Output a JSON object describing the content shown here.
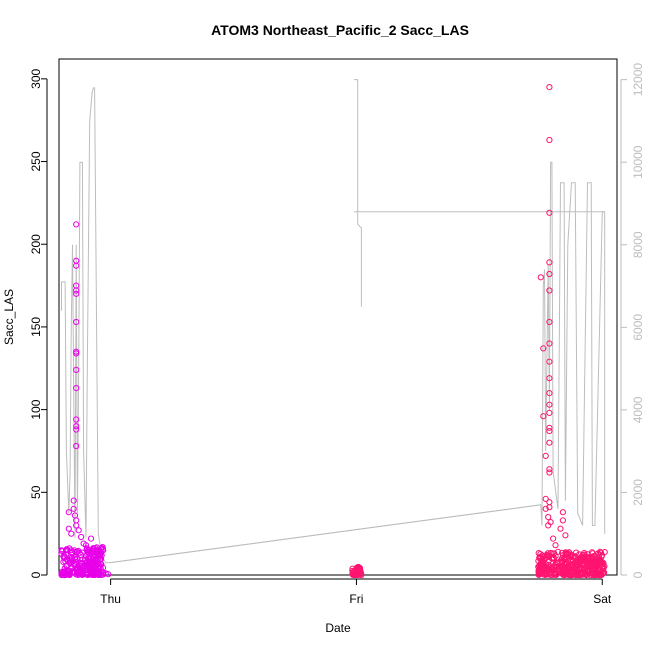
{
  "chart_data": {
    "type": "scatter",
    "title": "ATOM3 Northeast_Pacific_2 Sacc_LAS",
    "xlabel": "Date",
    "ylabel": "Sacc_LAS",
    "x_range_days": [
      -0.21,
      2.06
    ],
    "ylim": [
      0,
      312
    ],
    "y_ticks": [
      0,
      50,
      100,
      150,
      200,
      250,
      300
    ],
    "y_right_range": [
      0,
      12500
    ],
    "y_right_ticks": [
      0,
      2000,
      4000,
      6000,
      8000,
      10000,
      12000
    ],
    "x_ticks": [
      {
        "label": "Thu",
        "day": 0
      },
      {
        "label": "Fri",
        "day": 1
      },
      {
        "label": "Sat",
        "day": 2
      }
    ],
    "grid": false,
    "legend": "none",
    "colors": {
      "points_early": "#e800e8",
      "points_late": "#ff1470",
      "secondary_line": "#bdbdbd",
      "frame": "#000000"
    },
    "scatter_series": {
      "name": "",
      "points": [
        [
          -0.17,
          38
        ],
        [
          -0.17,
          28
        ],
        [
          -0.16,
          25
        ],
        [
          -0.15,
          45
        ],
        [
          -0.15,
          40
        ],
        [
          -0.145,
          36
        ],
        [
          -0.14,
          212
        ],
        [
          -0.14,
          190
        ],
        [
          -0.14,
          187
        ],
        [
          -0.14,
          175
        ],
        [
          -0.14,
          172
        ],
        [
          -0.14,
          170
        ],
        [
          -0.14,
          153
        ],
        [
          -0.14,
          135
        ],
        [
          -0.14,
          134
        ],
        [
          -0.14,
          124
        ],
        [
          -0.14,
          113
        ],
        [
          -0.14,
          94
        ],
        [
          -0.14,
          90
        ],
        [
          -0.14,
          88
        ],
        [
          -0.14,
          78
        ],
        [
          -0.14,
          33
        ],
        [
          -0.14,
          30
        ],
        [
          -0.13,
          27
        ],
        [
          -0.12,
          23
        ],
        [
          -0.11,
          19
        ],
        [
          -0.1,
          18
        ],
        [
          -0.09,
          14
        ],
        [
          -0.08,
          22
        ],
        [
          -0.07,
          14
        ],
        [
          -0.06,
          15
        ],
        [
          -0.05,
          13
        ],
        [
          -0.04,
          16
        ],
        [
          -0.03,
          15
        ],
        [
          -0.02,
          1
        ],
        [
          -0.01,
          0.5
        ],
        [
          0.99,
          2
        ],
        [
          1.0,
          3
        ],
        [
          1.01,
          2
        ],
        [
          1.75,
          180
        ],
        [
          1.76,
          137
        ],
        [
          1.76,
          96
        ],
        [
          1.77,
          72
        ],
        [
          1.77,
          46
        ],
        [
          1.77,
          40
        ],
        [
          1.78,
          35
        ],
        [
          1.78,
          30
        ],
        [
          1.785,
          295
        ],
        [
          1.785,
          263
        ],
        [
          1.785,
          219
        ],
        [
          1.785,
          189
        ],
        [
          1.785,
          182
        ],
        [
          1.785,
          172
        ],
        [
          1.785,
          153
        ],
        [
          1.785,
          140
        ],
        [
          1.785,
          129
        ],
        [
          1.785,
          119
        ],
        [
          1.785,
          110
        ],
        [
          1.785,
          103
        ],
        [
          1.785,
          98
        ],
        [
          1.785,
          89
        ],
        [
          1.785,
          87
        ],
        [
          1.785,
          80
        ],
        [
          1.785,
          64
        ],
        [
          1.785,
          62
        ],
        [
          1.785,
          44
        ],
        [
          1.785,
          41
        ],
        [
          1.79,
          32
        ],
        [
          1.8,
          22
        ],
        [
          1.81,
          18
        ],
        [
          1.82,
          14
        ],
        [
          1.83,
          28
        ],
        [
          1.84,
          33
        ],
        [
          1.84,
          38
        ],
        [
          1.85,
          24
        ],
        [
          1.86,
          13
        ],
        [
          1.88,
          11
        ],
        [
          1.9,
          9
        ],
        [
          1.92,
          12
        ],
        [
          1.95,
          7
        ],
        [
          1.98,
          6
        ],
        [
          2.0,
          5
        ]
      ],
      "clusters": [
        {
          "x_from": -0.2,
          "x_to": -0.03,
          "y_from": 0,
          "y_to": 17,
          "color": "early"
        },
        {
          "x_from": 0.98,
          "x_to": 1.02,
          "y_from": 0,
          "y_to": 5,
          "color": "late"
        },
        {
          "x_from": 1.74,
          "x_to": 2.01,
          "y_from": 0,
          "y_to": 14,
          "color": "late"
        }
      ]
    },
    "secondary_line": {
      "name": "",
      "axis": "right",
      "points": [
        [
          -0.2,
          6400
        ],
        [
          -0.2,
          7100
        ],
        [
          -0.185,
          7100
        ],
        [
          -0.18,
          3000
        ],
        [
          -0.17,
          1500
        ],
        [
          -0.165,
          2500
        ],
        [
          -0.16,
          6100
        ],
        [
          -0.155,
          8000
        ],
        [
          -0.15,
          4500
        ],
        [
          -0.145,
          900
        ],
        [
          -0.14,
          8000
        ],
        [
          -0.135,
          1500
        ],
        [
          -0.13,
          5000
        ],
        [
          -0.125,
          10000
        ],
        [
          -0.115,
          10000
        ],
        [
          -0.11,
          3000
        ],
        [
          -0.1,
          900
        ],
        [
          -0.095,
          5000
        ],
        [
          -0.085,
          11000
        ],
        [
          -0.075,
          11700
        ],
        [
          -0.07,
          11800
        ],
        [
          -0.065,
          11800
        ],
        [
          -0.05,
          1000
        ],
        [
          -0.04,
          600
        ],
        [
          -0.03,
          400
        ],
        [
          -0.02,
          300
        ],
        [
          0,
          300
        ],
        [
          1.75,
          1700
        ],
        [
          1.755,
          1200
        ],
        [
          1.76,
          7000
        ],
        [
          1.765,
          7400
        ],
        [
          1.77,
          3000
        ],
        [
          1.78,
          7500
        ],
        [
          1.785,
          4000
        ],
        [
          1.79,
          10000
        ],
        [
          1.795,
          10000
        ],
        [
          1.8,
          2500
        ],
        [
          1.82,
          1600
        ],
        [
          1.83,
          9500
        ],
        [
          1.845,
          9500
        ],
        [
          1.85,
          1800
        ],
        [
          1.86,
          8000
        ],
        [
          1.875,
          9500
        ],
        [
          1.89,
          9500
        ],
        [
          1.9,
          1500
        ],
        [
          1.92,
          1200
        ],
        [
          1.94,
          9500
        ],
        [
          1.955,
          9500
        ],
        [
          1.96,
          1200
        ],
        [
          1.97,
          1200
        ],
        [
          2.0,
          8800
        ],
        [
          2.01,
          8800
        ]
      ],
      "connector_segments": [
        [
          [
            0,
            300
          ],
          [
            1.75,
            1700
          ]
        ],
        [
          [
            0.99,
            12000
          ],
          [
            1.005,
            12000
          ],
          [
            1.005,
            8500
          ],
          [
            1.02,
            8400
          ],
          [
            1.02,
            6500
          ]
        ],
        [
          [
            0.99,
            8800
          ],
          [
            2.01,
            8800
          ],
          [
            2.01,
            1000
          ]
        ]
      ]
    }
  }
}
